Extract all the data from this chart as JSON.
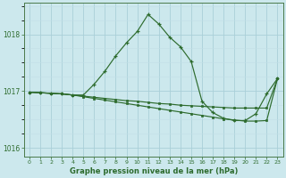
{
  "title": "Graphe pression niveau de la mer (hPa)",
  "background_color": "#cce8ed",
  "grid_color_major": "#aacfd8",
  "grid_color_minor": "#c2dfe7",
  "line_color": "#2d6b2d",
  "xlim": [
    -0.5,
    23.5
  ],
  "ylim": [
    1015.85,
    1018.55
  ],
  "yticks": [
    1016,
    1017,
    1018
  ],
  "xticks": [
    0,
    1,
    2,
    3,
    4,
    5,
    6,
    7,
    8,
    9,
    10,
    11,
    12,
    13,
    14,
    15,
    16,
    17,
    18,
    19,
    20,
    21,
    22,
    23
  ],
  "series1_x": [
    0,
    1,
    2,
    3,
    4,
    5,
    6,
    7,
    8,
    9,
    10,
    11,
    12,
    13,
    14,
    15,
    16,
    17,
    18,
    19,
    20,
    21,
    22,
    23
  ],
  "series1_y": [
    1016.98,
    1016.97,
    1016.96,
    1016.95,
    1016.93,
    1016.93,
    1017.12,
    1017.35,
    1017.62,
    1017.85,
    1018.05,
    1018.35,
    1018.18,
    1017.95,
    1017.78,
    1017.52,
    1016.82,
    1016.62,
    1016.52,
    1016.48,
    1016.48,
    1016.6,
    1016.95,
    1017.22
  ],
  "series2_x": [
    0,
    1,
    2,
    3,
    4,
    5,
    6,
    7,
    8,
    9,
    10,
    11,
    12,
    13,
    14,
    15,
    16,
    17,
    18,
    19,
    20,
    21,
    22,
    23
  ],
  "series2_y": [
    1016.98,
    1016.97,
    1016.96,
    1016.95,
    1016.93,
    1016.9,
    1016.87,
    1016.84,
    1016.81,
    1016.78,
    1016.75,
    1016.72,
    1016.69,
    1016.66,
    1016.63,
    1016.6,
    1016.57,
    1016.54,
    1016.51,
    1016.49,
    1016.47,
    1016.47,
    1016.48,
    1017.22
  ],
  "series3_x": [
    0,
    1,
    2,
    3,
    4,
    5,
    6,
    7,
    8,
    9,
    10,
    11,
    12,
    13,
    14,
    15,
    16,
    17,
    18,
    19,
    20,
    21,
    22,
    23
  ],
  "series3_y": [
    1016.98,
    1016.97,
    1016.96,
    1016.95,
    1016.93,
    1016.91,
    1016.89,
    1016.87,
    1016.85,
    1016.83,
    1016.82,
    1016.8,
    1016.78,
    1016.77,
    1016.75,
    1016.74,
    1016.73,
    1016.72,
    1016.71,
    1016.7,
    1016.7,
    1016.7,
    1016.7,
    1017.22
  ]
}
